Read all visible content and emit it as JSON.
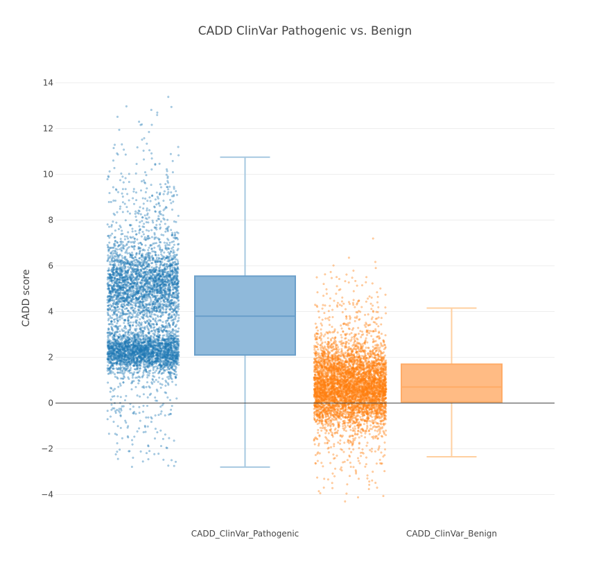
{
  "chart_data": {
    "type": "box",
    "title": "CADD ClinVar Pathogenic vs. Benign",
    "xlabel": "",
    "ylabel": "CADD score",
    "ylim": [
      -4.6,
      14.6
    ],
    "yticks": [
      -4,
      -2,
      0,
      2,
      4,
      6,
      8,
      10,
      12,
      14
    ],
    "grid": true,
    "zeroline": true,
    "legend": "none",
    "categories": [
      "CADD_ClinVar_Pathogenic",
      "CADD_ClinVar_Benign"
    ],
    "series": [
      {
        "category": "CADD_ClinVar_Pathogenic",
        "color": "#1f77b4",
        "box_fill": "#8fb9da",
        "box_line": "#6a9fca",
        "whisker_color": "#a6c8e0",
        "whisker_low": -2.8,
        "q1": 2.1,
        "median": 3.8,
        "q3": 5.55,
        "whisker_high": 10.75,
        "jitter": {
          "clusters": [
            {
              "mean": 2.25,
              "sd": 0.45,
              "weight": 0.38
            },
            {
              "mean": 5.2,
              "sd": 0.85,
              "weight": 0.36
            },
            {
              "mean": 4.5,
              "sd": 3.2,
              "weight": 0.26
            }
          ],
          "min": -2.8,
          "max": 13.6,
          "count": 5200
        }
      },
      {
        "category": "CADD_ClinVar_Benign",
        "color": "#ff7f0e",
        "box_fill": "#ffbb84",
        "box_line": "#ffab66",
        "whisker_color": "#ffcf9f",
        "whisker_low": -2.35,
        "q1": 0.05,
        "median": 0.7,
        "q3": 1.7,
        "whisker_high": 4.15,
        "jitter": {
          "clusters": [
            {
              "mean": 0.4,
              "sd": 0.7,
              "weight": 0.55
            },
            {
              "mean": 1.6,
              "sd": 0.6,
              "weight": 0.2
            },
            {
              "mean": 1.0,
              "sd": 1.9,
              "weight": 0.25
            }
          ],
          "min": -4.4,
          "max": 9.1,
          "count": 5200
        }
      }
    ]
  }
}
